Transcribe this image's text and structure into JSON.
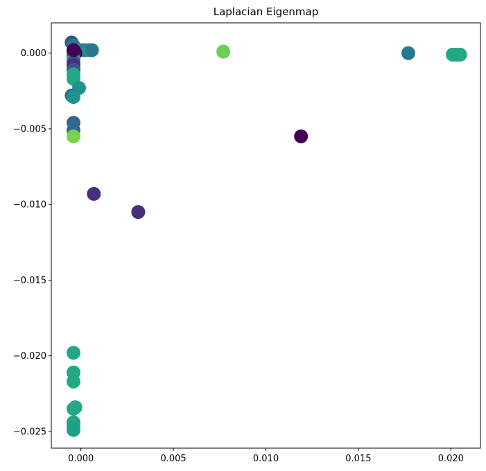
{
  "chart_data": {
    "type": "scatter",
    "title": "Laplacian Eigenmap",
    "xlabel": "",
    "ylabel": "",
    "xlim": [
      -0.0016,
      0.0216
    ],
    "ylim": [
      -0.0261,
      0.002
    ],
    "x_ticks": [
      0.0,
      0.005,
      0.01,
      0.015,
      0.02
    ],
    "x_tick_labels": [
      "0.000",
      "0.005",
      "0.010",
      "0.015",
      "0.020"
    ],
    "y_ticks": [
      0.0,
      -0.005,
      -0.01,
      -0.015,
      -0.02,
      -0.025
    ],
    "y_tick_labels": [
      "0.000",
      "−0.005",
      "−0.010",
      "−0.015",
      "−0.020",
      "−0.025"
    ],
    "grid": false,
    "legend": "none",
    "colormap": "viridis",
    "points": [
      {
        "x": -0.0005,
        "y": 0.0007,
        "color": "#3b528b"
      },
      {
        "x": -0.0004,
        "y": 0.0005,
        "color": "#2a788e"
      },
      {
        "x": 0.0,
        "y": 0.0002,
        "color": "#22a884"
      },
      {
        "x": 0.0002,
        "y": 0.0002,
        "color": "#2a788e"
      },
      {
        "x": 0.0004,
        "y": 0.0002,
        "color": "#21918c"
      },
      {
        "x": 0.0006,
        "y": 0.0002,
        "color": "#2a788e"
      },
      {
        "x": -0.0004,
        "y": 0.0001,
        "color": "#3b528b"
      },
      {
        "x": -0.0003,
        "y": 0.0,
        "color": "#440154"
      },
      {
        "x": -0.0004,
        "y": -0.0002,
        "color": "#481c6e"
      },
      {
        "x": -0.0004,
        "y": -0.0004,
        "color": "#22a884"
      },
      {
        "x": -0.0004,
        "y": -0.0006,
        "color": "#3b528b"
      },
      {
        "x": -0.0004,
        "y": -0.0008,
        "color": "#472d7b"
      },
      {
        "x": -0.0004,
        "y": -0.0011,
        "color": "#3b528b"
      },
      {
        "x": -0.0004,
        "y": -0.0014,
        "color": "#22a884"
      },
      {
        "x": -0.0004,
        "y": -0.0017,
        "color": "#22a884"
      },
      {
        "x": -0.0001,
        "y": -0.0023,
        "color": "#21918c"
      },
      {
        "x": -0.0005,
        "y": -0.0028,
        "color": "#2c728e"
      },
      {
        "x": -0.0004,
        "y": -0.0029,
        "color": "#21918c"
      },
      {
        "x": -0.0004,
        "y": -0.0046,
        "color": "#31688e"
      },
      {
        "x": -0.0004,
        "y": -0.0051,
        "color": "#31688e"
      },
      {
        "x": -0.0004,
        "y": -0.0055,
        "color": "#7ad151"
      },
      {
        "x": 0.0077,
        "y": 0.0001,
        "color": "#6ccd5a"
      },
      {
        "x": 0.0119,
        "y": -0.0055,
        "color": "#440154"
      },
      {
        "x": 0.0007,
        "y": -0.0093,
        "color": "#472f7d"
      },
      {
        "x": 0.0031,
        "y": -0.0105,
        "color": "#472f7d"
      },
      {
        "x": 0.0177,
        "y": 0.0,
        "color": "#2a788e"
      },
      {
        "x": 0.0201,
        "y": -0.0001,
        "color": "#22a884"
      },
      {
        "x": 0.0203,
        "y": -0.0001,
        "color": "#22a884"
      },
      {
        "x": 0.0205,
        "y": -0.0001,
        "color": "#22a884"
      },
      {
        "x": -0.0004,
        "y": -0.0198,
        "color": "#22a884"
      },
      {
        "x": -0.0004,
        "y": -0.0211,
        "color": "#22a884"
      },
      {
        "x": -0.0004,
        "y": -0.0217,
        "color": "#22a884"
      },
      {
        "x": -0.0003,
        "y": -0.0234,
        "color": "#22a884"
      },
      {
        "x": -0.0004,
        "y": -0.0235,
        "color": "#22a884"
      },
      {
        "x": -0.0004,
        "y": -0.0244,
        "color": "#21a585"
      },
      {
        "x": -0.0004,
        "y": -0.0246,
        "color": "#21a585"
      },
      {
        "x": -0.0004,
        "y": -0.0249,
        "color": "#1fa187"
      },
      {
        "x": -0.0004,
        "y": 0.0002,
        "color": "#440154"
      }
    ]
  }
}
